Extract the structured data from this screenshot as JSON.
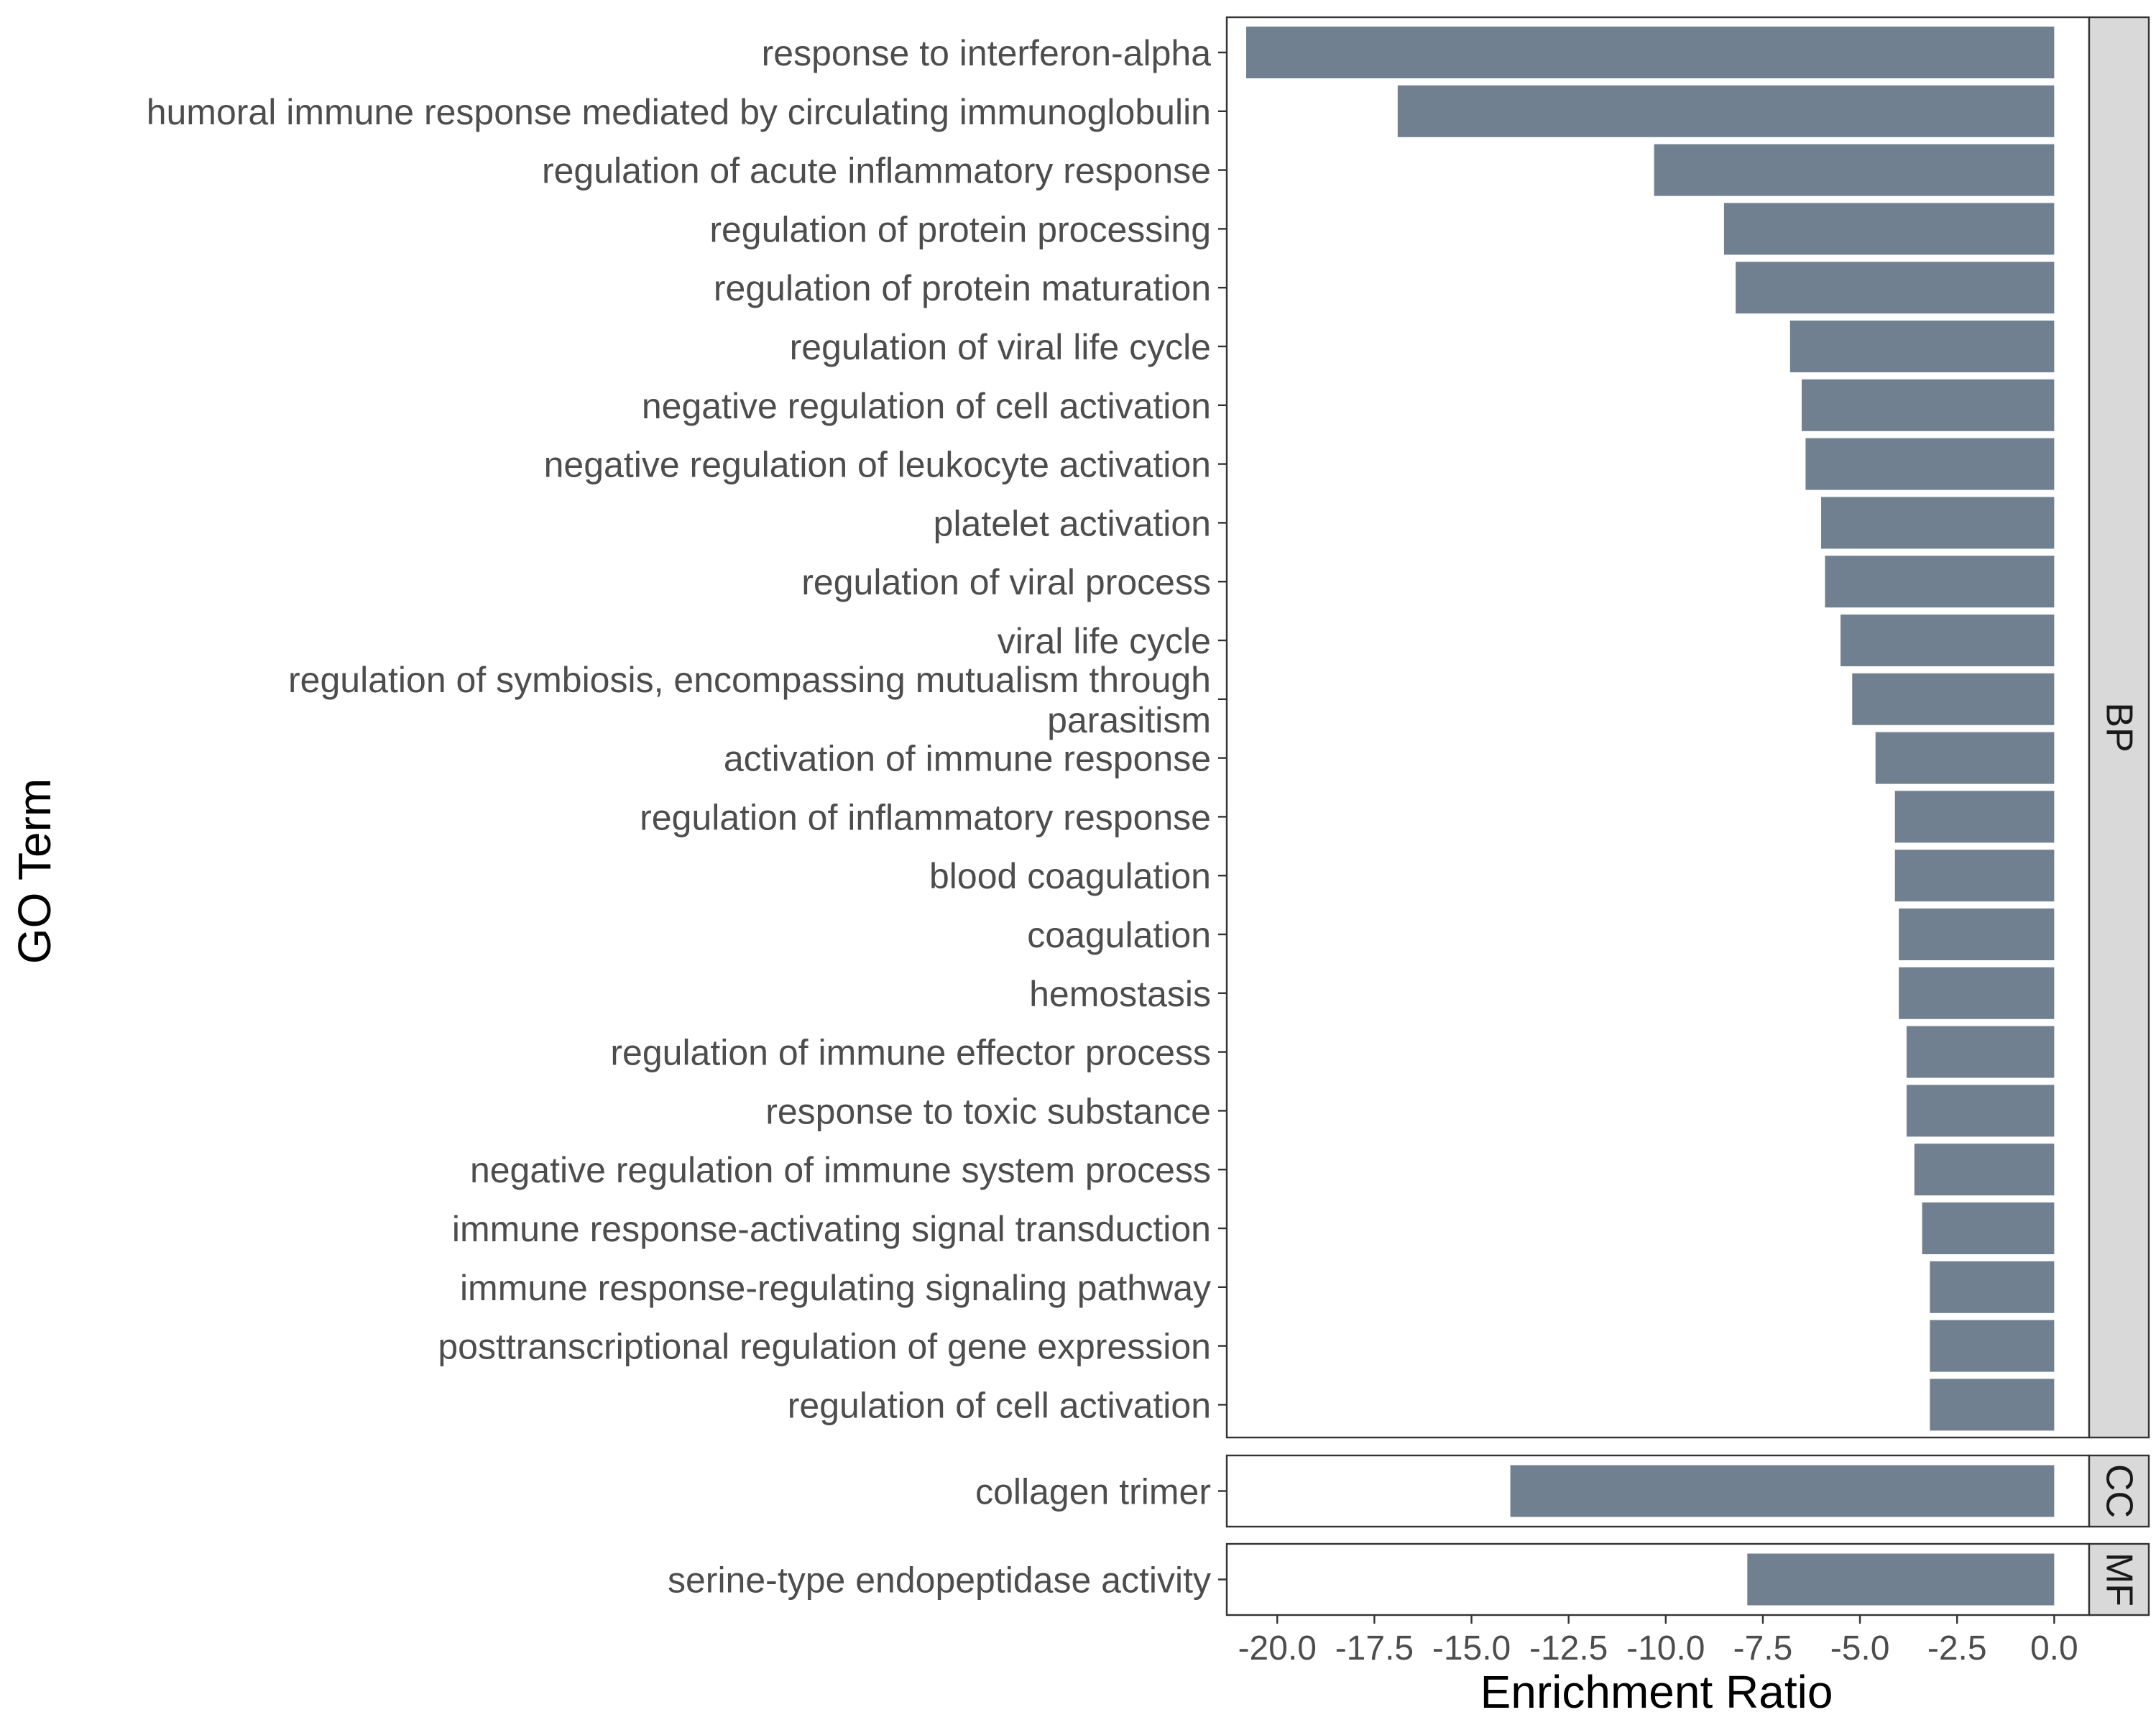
{
  "chart_data": {
    "type": "bar",
    "orientation": "horizontal",
    "xlabel": "Enrichment Ratio",
    "ylabel": "GO Term",
    "xlim": [
      -21.3,
      0.9
    ],
    "x_ticks": [
      -20.0,
      -17.5,
      -15.0,
      -12.5,
      -10.0,
      -7.5,
      -5.0,
      -2.5,
      0.0
    ],
    "x_tick_labels": [
      "-20.0",
      "-17.5",
      "-15.0",
      "-12.5",
      "-10.0",
      "-7.5",
      "-5.0",
      "-2.5",
      "0.0"
    ],
    "grid": false,
    "bar_color": "#708090",
    "strip_color": "#d9d9d9",
    "panels": [
      {
        "facet": "BP",
        "categories": [
          "response to interferon-alpha",
          "humoral immune response mediated by circulating immunoglobulin",
          "regulation of acute inflammatory response",
          "regulation of protein processing",
          "regulation of protein maturation",
          "regulation of viral life cycle",
          "negative regulation of cell activation",
          "negative regulation of leukocyte activation",
          "platelet activation",
          "regulation of viral process",
          "viral life cycle",
          "regulation of symbiosis, encompassing mutualism through parasitism",
          "activation of immune response",
          "regulation of inflammatory response",
          "blood coagulation",
          "coagulation",
          "hemostasis",
          "regulation of immune effector process",
          "response to toxic substance",
          "negative regulation of immune system process",
          "immune response-activating signal transduction",
          "immune response-regulating signaling pathway",
          "posttranscriptional regulation of gene expression",
          "regulation of cell activation"
        ],
        "category_lines": [
          [
            "response to interferon-alpha"
          ],
          [
            "humoral immune response mediated by circulating immunoglobulin"
          ],
          [
            "regulation of acute inflammatory response"
          ],
          [
            "regulation of protein processing"
          ],
          [
            "regulation of protein maturation"
          ],
          [
            "regulation of viral life cycle"
          ],
          [
            "negative regulation of cell activation"
          ],
          [
            "negative regulation of leukocyte activation"
          ],
          [
            "platelet activation"
          ],
          [
            "regulation of viral process"
          ],
          [
            "viral life cycle"
          ],
          [
            "regulation of symbiosis, encompassing mutualism through",
            "parasitism"
          ],
          [
            "activation of immune response"
          ],
          [
            "regulation of inflammatory response"
          ],
          [
            "blood coagulation"
          ],
          [
            "coagulation"
          ],
          [
            "hemostasis"
          ],
          [
            "regulation of immune effector process"
          ],
          [
            "response to toxic substance"
          ],
          [
            "negative regulation of immune system process"
          ],
          [
            "immune response-activating signal transduction"
          ],
          [
            "immune response-regulating signaling pathway"
          ],
          [
            "posttranscriptional regulation of gene expression"
          ],
          [
            "regulation of cell activation"
          ]
        ],
        "values": [
          -20.8,
          -16.9,
          -10.3,
          -8.5,
          -8.2,
          -6.8,
          -6.5,
          -6.4,
          -6.0,
          -5.9,
          -5.5,
          -5.2,
          -4.6,
          -4.1,
          -4.1,
          -4.0,
          -4.0,
          -3.8,
          -3.8,
          -3.6,
          -3.4,
          -3.2,
          -3.2,
          -3.2
        ]
      },
      {
        "facet": "CC",
        "categories": [
          "collagen trimer"
        ],
        "category_lines": [
          [
            "collagen trimer"
          ]
        ],
        "values": [
          -14.0
        ]
      },
      {
        "facet": "MF",
        "categories": [
          "serine-type endopeptidase activity"
        ],
        "category_lines": [
          [
            "serine-type endopeptidase activity"
          ]
        ],
        "values": [
          -7.9
        ]
      }
    ]
  }
}
